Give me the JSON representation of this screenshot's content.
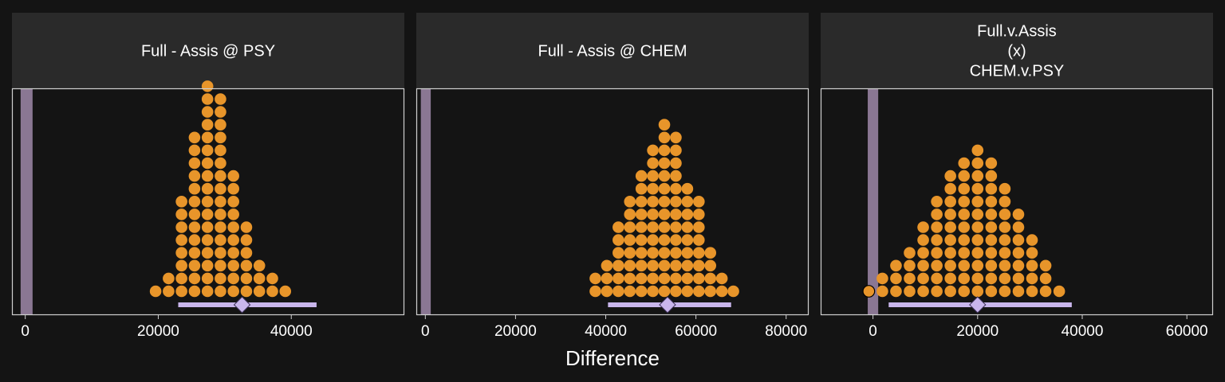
{
  "chart_data": {
    "type": "dotplot",
    "xlabel": "Difference",
    "colors": {
      "background": "#141414",
      "strip": "#2a2a2a",
      "panel_border": "#d0d0d0",
      "dots": "#e8952a",
      "interval": "#c9b6ec",
      "reference_band": "#8a7793"
    },
    "panels": [
      {
        "strip_lines": [
          "Full - Assis @ PSY"
        ],
        "xlim": [
          -2000,
          57000
        ],
        "xticks": [
          0,
          20000,
          40000
        ],
        "tick_labels": [
          "0",
          "20000",
          "40000"
        ],
        "reference_band": [
          -700,
          1100
        ],
        "interval": {
          "low": 23000,
          "high": 43800,
          "point": 32600
        },
        "dots": {
          "x_start": 19600,
          "x_step": 1950,
          "counts": [
            1,
            2,
            8,
            13,
            17,
            16,
            10,
            6,
            3,
            2,
            1
          ],
          "highlight_index": -1
        }
      },
      {
        "strip_lines": [
          "Full - Assis @ CHEM"
        ],
        "xlim": [
          -2000,
          85000
        ],
        "xticks": [
          0,
          20000,
          40000,
          60000,
          80000
        ],
        "tick_labels": [
          "0",
          "20000",
          "40000",
          "60000",
          "80000"
        ],
        "reference_band": [
          -1000,
          1200
        ],
        "interval": {
          "low": 40500,
          "high": 67800,
          "point": 53700
        },
        "dots": {
          "x_start": 37700,
          "x_step": 2550,
          "counts": [
            2,
            3,
            6,
            8,
            10,
            12,
            14,
            13,
            9,
            8,
            4,
            2,
            1
          ],
          "highlight_index": -1
        }
      },
      {
        "strip_lines": [
          "Full.v.Assis",
          "(x)",
          "CHEM.v.PSY"
        ],
        "xlim": [
          -10000,
          65000
        ],
        "xticks": [
          0,
          20000,
          40000,
          60000
        ],
        "tick_labels": [
          "0",
          "20000",
          "40000",
          "60000"
        ],
        "reference_band": [
          -1000,
          1000
        ],
        "interval": {
          "low": 3000,
          "high": 38000,
          "point": 20000
        },
        "dots": {
          "x_start": -800,
          "x_step": 2600,
          "counts": [
            1,
            2,
            3,
            4,
            6,
            8,
            10,
            11,
            12,
            11,
            9,
            7,
            5,
            3,
            1
          ],
          "highlight_index": 0
        }
      }
    ]
  }
}
